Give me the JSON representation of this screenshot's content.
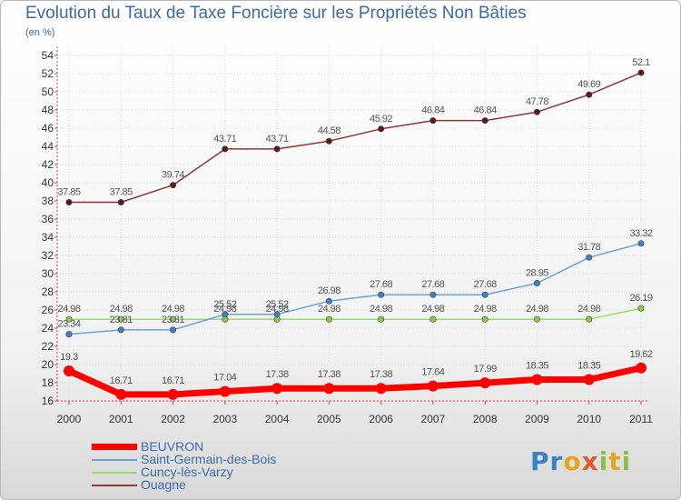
{
  "chart_data": {
    "type": "line",
    "title": "Evolution du Taux de Taxe Foncière sur les Propriétés Non Bâties",
    "ylabel": "(en %)",
    "xlabel": "",
    "ylim": [
      16,
      54
    ],
    "yticks": [
      16,
      18,
      20,
      22,
      24,
      26,
      28,
      30,
      32,
      34,
      36,
      38,
      40,
      42,
      44,
      46,
      48,
      50,
      52,
      54
    ],
    "categories": [
      "2000",
      "2001",
      "2002",
      "2003",
      "2004",
      "2005",
      "2006",
      "2007",
      "2008",
      "2009",
      "2010",
      "2011"
    ],
    "series": [
      {
        "name": "BEUVRON",
        "color": "#ff0000",
        "width": 7,
        "values": [
          19.3,
          16.71,
          16.71,
          17.04,
          17.38,
          17.38,
          17.38,
          17.64,
          17.99,
          18.35,
          18.35,
          19.62
        ],
        "labels": [
          "19.3",
          "16.71",
          "16.71",
          "17.04",
          "17.38",
          "17.38",
          "17.38",
          "17.64",
          "17.99",
          "18.35",
          "18.35",
          "19.62"
        ]
      },
      {
        "name": "Saint-Germain-des-Bois",
        "color": "#6fa0d8",
        "width": 1.5,
        "values": [
          23.34,
          23.81,
          23.81,
          25.52,
          25.52,
          26.98,
          27.68,
          27.68,
          27.68,
          28.95,
          31.78,
          33.32
        ],
        "labels": [
          "23.34",
          "23.81",
          "23.81",
          "25.52",
          "25.52",
          "26.98",
          "27.68",
          "27.68",
          "27.68",
          "28.95",
          "31.78",
          "33.32"
        ]
      },
      {
        "name": "Cuncy-lès-Varzy",
        "color": "#99dd66",
        "width": 1.5,
        "values": [
          24.98,
          24.98,
          24.98,
          24.98,
          24.98,
          24.98,
          24.98,
          24.98,
          24.98,
          24.98,
          24.98,
          26.19
        ],
        "labels": [
          "24.98",
          "24.98",
          "24.98",
          "24.98",
          "24.98",
          "24.98",
          "24.98",
          "24.98",
          "24.98",
          "24.98",
          "24.98",
          "26.19"
        ]
      },
      {
        "name": "Ouagne",
        "color": "#8b3a3a",
        "width": 1.5,
        "values": [
          37.85,
          37.85,
          39.74,
          43.71,
          43.71,
          44.58,
          45.92,
          46.84,
          46.84,
          47.78,
          49.69,
          52.1
        ],
        "labels": [
          "37.85",
          "37.85",
          "39.74",
          "43.71",
          "43.71",
          "44.58",
          "45.92",
          "46.84",
          "46.84",
          "47.78",
          "49.69",
          "52.1"
        ]
      }
    ]
  },
  "logo": {
    "p1": "Pr",
    "p2": "o",
    "p3": "x",
    "p4": "i",
    "p5": "t",
    "p6": "i"
  }
}
